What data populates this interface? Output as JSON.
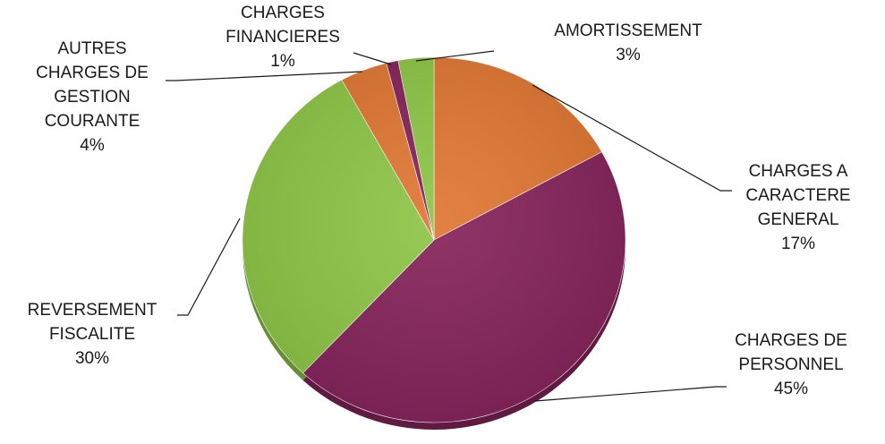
{
  "chart_data": {
    "type": "pie",
    "title": "",
    "slices": [
      {
        "label": "CHARGES A CARACTERE GENERAL",
        "lines": [
          "CHARGES A",
          "CARACTERE",
          "GENERAL"
        ],
        "percent_label": "17%",
        "value": 17,
        "color": "#df7632"
      },
      {
        "label": "CHARGES DE PERSONNEL",
        "lines": [
          "CHARGES DE",
          "PERSONNEL"
        ],
        "percent_label": "45%",
        "value": 45,
        "color": "#85235a"
      },
      {
        "label": "REVERSEMENT FISCALITE",
        "lines": [
          "REVERSEMENT",
          "FISCALITE"
        ],
        "percent_label": "30%",
        "value": 30,
        "color": "#8dc446"
      },
      {
        "label": "AUTRES CHARGES DE GESTION COURANTE",
        "lines": [
          "AUTRES",
          "CHARGES DE",
          "GESTION",
          "COURANTE"
        ],
        "percent_label": "4%",
        "value": 4,
        "color": "#df7632"
      },
      {
        "label": "CHARGES FINANCIERES",
        "lines": [
          "CHARGES",
          "FINANCIERES"
        ],
        "percent_label": "1%",
        "value": 1,
        "color": "#85235a"
      },
      {
        "label": "AMORTISSEMENT",
        "lines": [
          "AMORTISSEMENT"
        ],
        "percent_label": "3%",
        "value": 3,
        "color": "#8dc446"
      }
    ],
    "legend": "none",
    "data_labels": "outside with leader lines"
  }
}
